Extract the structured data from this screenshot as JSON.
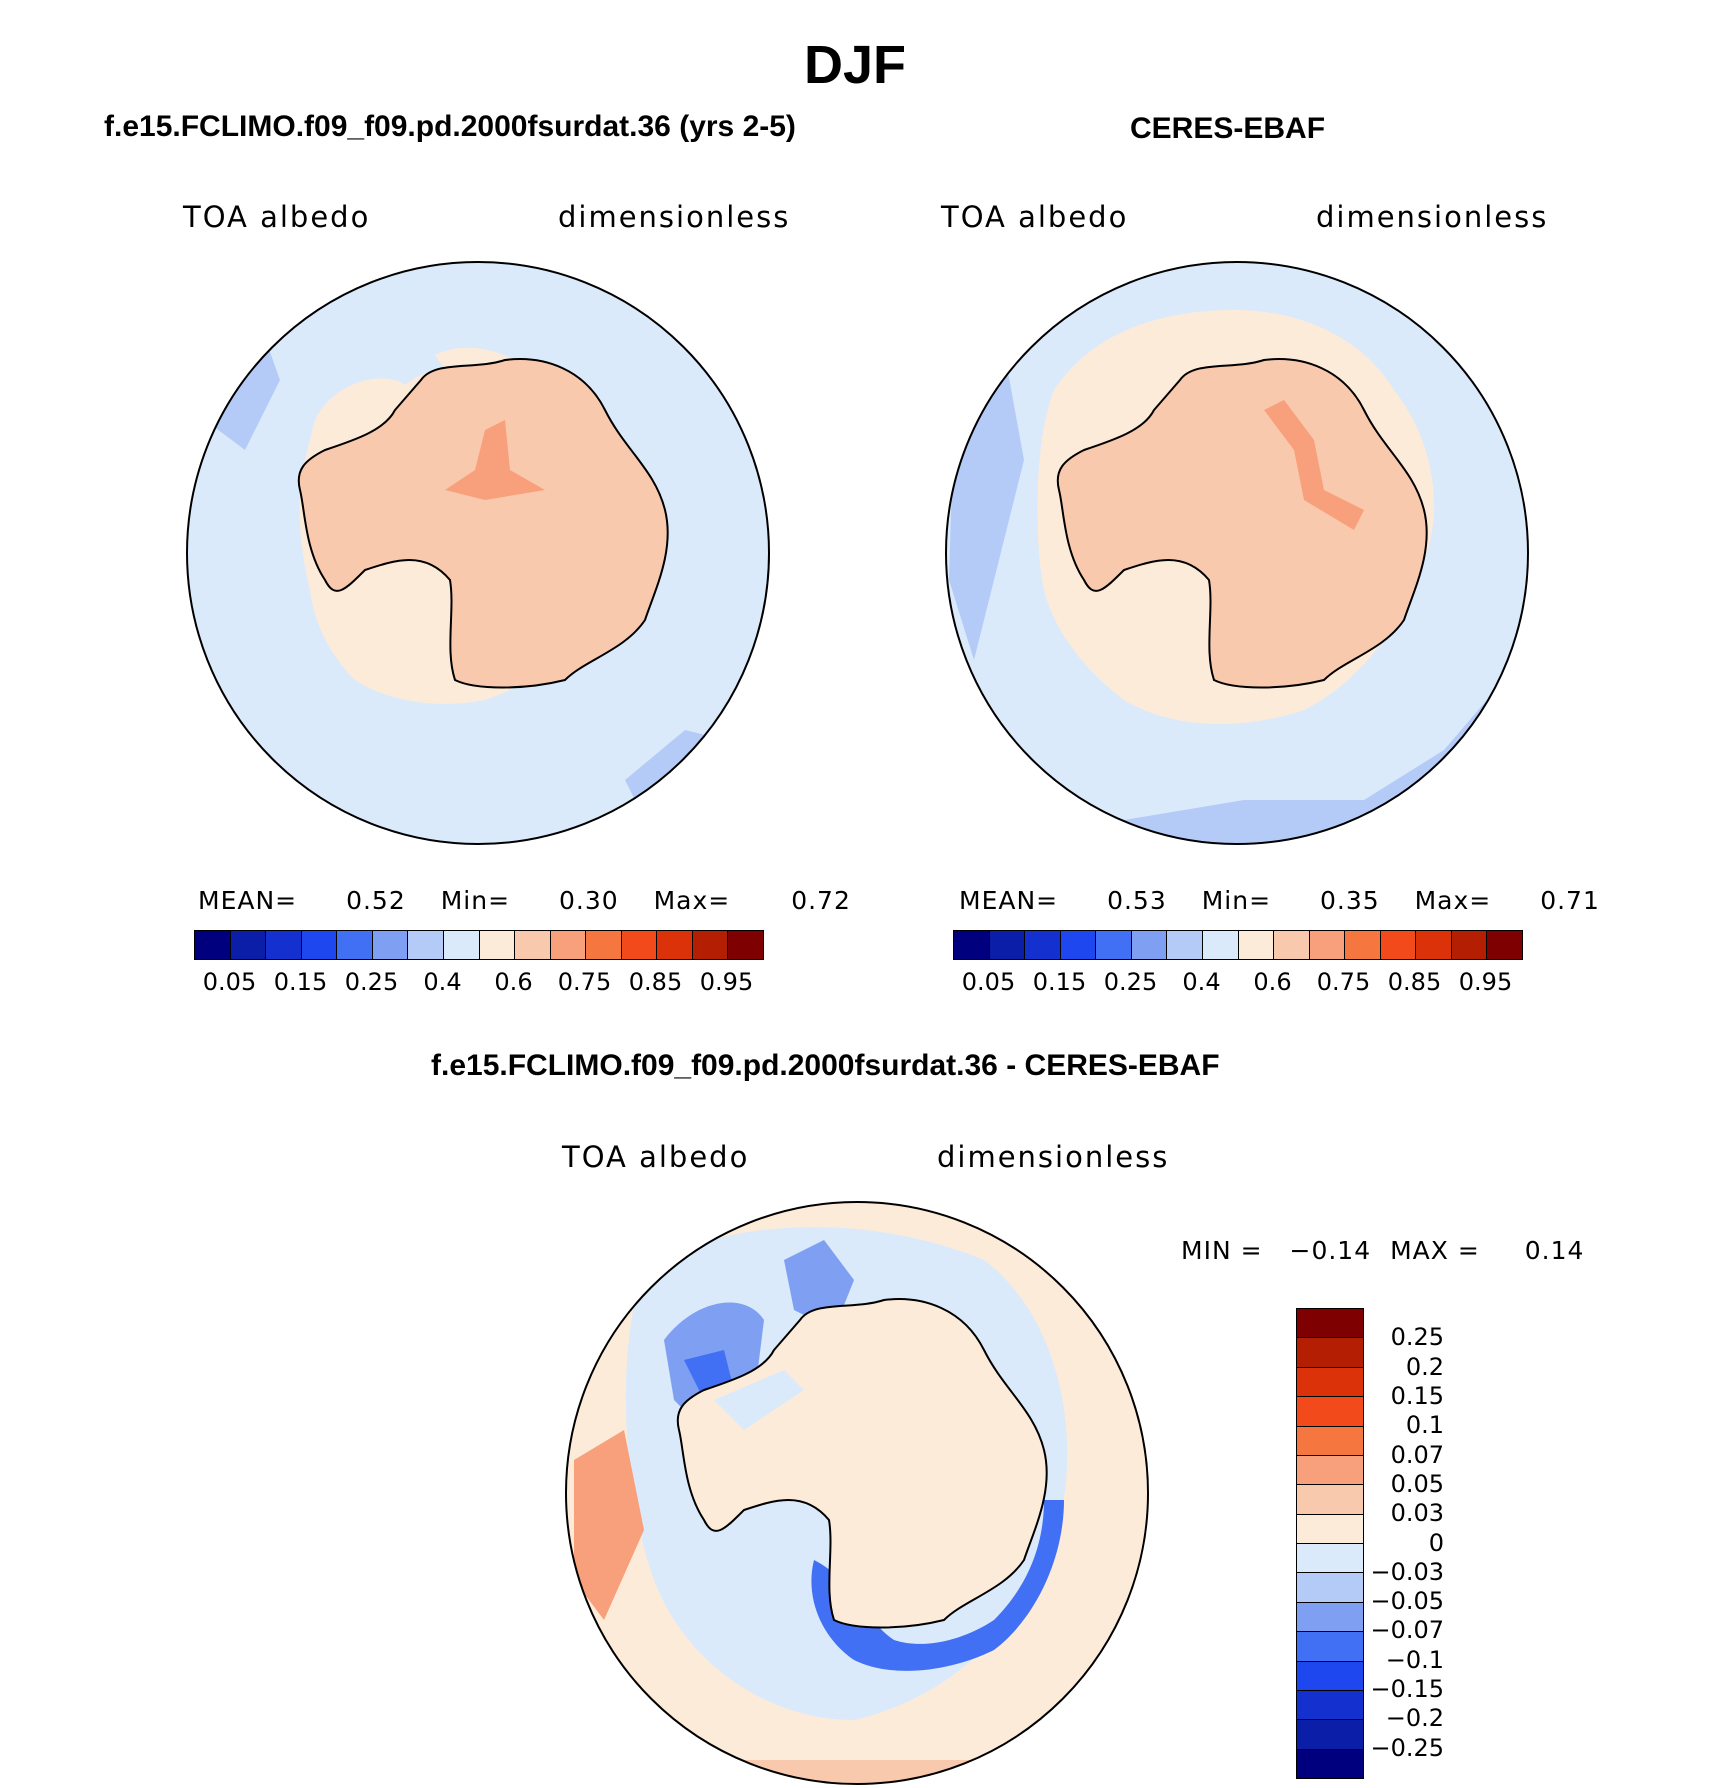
{
  "figure": {
    "title": "DJF"
  },
  "panels": {
    "model": {
      "title": "f.e15.FCLIMO.f09_f09.pd.2000fsurdat.36 (yrs 2-5)",
      "variable": "TOA albedo",
      "units": "dimensionless",
      "stats": {
        "mean_label": "MEAN=",
        "mean": "0.52",
        "min_label": "Min=",
        "min": "0.30",
        "max_label": "Max=",
        "max": "0.72"
      }
    },
    "obs": {
      "title": "CERES-EBAF",
      "variable": "TOA albedo",
      "units": "dimensionless",
      "stats": {
        "mean_label": "MEAN=",
        "mean": "0.53",
        "min_label": "Min=",
        "min": "0.35",
        "max_label": "Max=",
        "max": "0.71"
      }
    },
    "diff": {
      "title": "f.e15.FCLIMO.f09_f09.pd.2000fsurdat.36 - CERES-EBAF",
      "variable": "TOA albedo",
      "units": "dimensionless",
      "stats": {
        "min_label": "MIN =",
        "min": "−0.14",
        "max_label": "MAX =",
        "max": "0.14"
      }
    }
  },
  "colorbars": {
    "abs": {
      "colors": [
        "#00007e",
        "#0a1ea8",
        "#1430cf",
        "#1e47f0",
        "#4170f5",
        "#7f9ff2",
        "#b5cbf7",
        "#daeafb",
        "#fdebd9",
        "#f9c9ae",
        "#f7a07b",
        "#f5763f",
        "#f24a1b",
        "#db3209",
        "#b41e03",
        "#7f0000"
      ],
      "labels": [
        "0.05",
        "0.15",
        "0.25",
        "0.4",
        "0.6",
        "0.75",
        "0.85",
        "0.95"
      ]
    },
    "diff": {
      "colors": [
        "#7f0000",
        "#b41e03",
        "#db3209",
        "#f24a1b",
        "#f5763f",
        "#f7a07b",
        "#f9c9ae",
        "#fdebd9",
        "#daeafb",
        "#b5cbf7",
        "#7f9ff2",
        "#4170f5",
        "#1e47f0",
        "#1430cf",
        "#0a1ea8",
        "#00007e"
      ],
      "labels": [
        "0.25",
        "0.2",
        "0.15",
        "0.1",
        "0.07",
        "0.05",
        "0.03",
        "0",
        "−0.03",
        "−0.05",
        "−0.07",
        "−0.1",
        "−0.15",
        "−0.2",
        "−0.25"
      ]
    }
  }
}
